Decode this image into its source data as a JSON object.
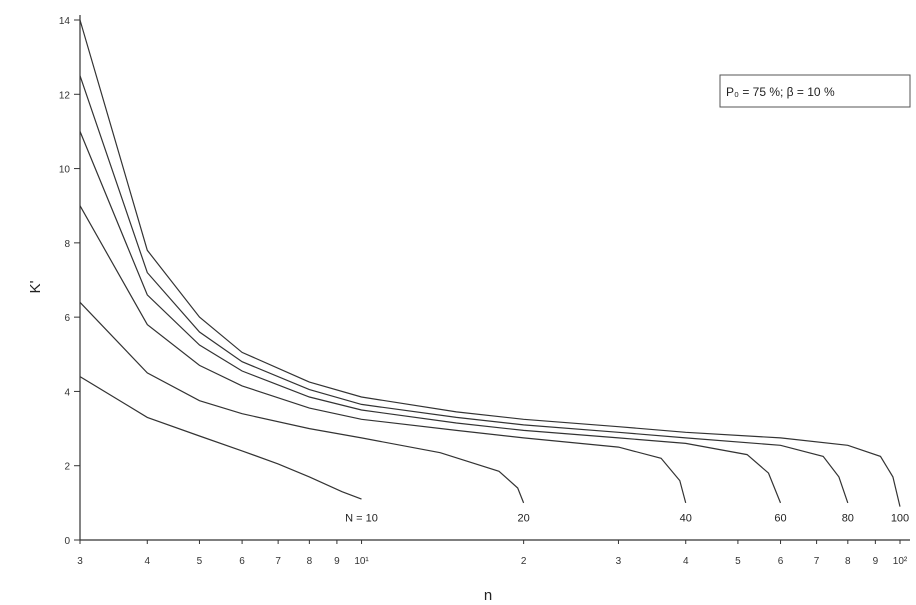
{
  "chart_data": {
    "type": "line",
    "xlabel": "n",
    "ylabel": "K'",
    "xscale": "log",
    "xlim": [
      3,
      100
    ],
    "ylim": [
      0,
      14
    ],
    "yticks": [
      0,
      2,
      4,
      6,
      8,
      10,
      12,
      14
    ],
    "xticks": [
      {
        "value": 3,
        "label": "3"
      },
      {
        "value": 4,
        "label": "4"
      },
      {
        "value": 5,
        "label": "5"
      },
      {
        "value": 6,
        "label": "6"
      },
      {
        "value": 7,
        "label": "7"
      },
      {
        "value": 8,
        "label": "8"
      },
      {
        "value": 9,
        "label": "9"
      },
      {
        "value": 10,
        "label": "10¹"
      },
      {
        "value": 20,
        "label": "2"
      },
      {
        "value": 30,
        "label": "3"
      },
      {
        "value": 40,
        "label": "4"
      },
      {
        "value": 50,
        "label": "5"
      },
      {
        "value": 60,
        "label": "6"
      },
      {
        "value": 70,
        "label": "7"
      },
      {
        "value": 80,
        "label": "8"
      },
      {
        "value": 90,
        "label": "9"
      },
      {
        "value": 100,
        "label": "10²"
      }
    ],
    "legend_text": "P₀ = 75 %; β = 10 %",
    "legend_position": "top-right",
    "grid": false,
    "series": [
      {
        "name": "N = 10",
        "x": [
          3,
          4,
          5,
          6,
          7,
          8,
          9.2,
          10
        ],
        "y": [
          4.4,
          3.3,
          2.8,
          2.4,
          2.05,
          1.7,
          1.3,
          1.1
        ]
      },
      {
        "name": "20",
        "x": [
          3,
          4,
          5,
          6,
          8,
          10,
          14,
          18,
          19.5,
          20
        ],
        "y": [
          6.4,
          4.5,
          3.75,
          3.4,
          3.0,
          2.75,
          2.35,
          1.85,
          1.4,
          1.0
        ]
      },
      {
        "name": "40",
        "x": [
          3,
          4,
          5,
          6,
          8,
          10,
          15,
          20,
          30,
          36,
          39,
          40
        ],
        "y": [
          9.0,
          5.8,
          4.7,
          4.15,
          3.55,
          3.25,
          2.95,
          2.75,
          2.5,
          2.2,
          1.6,
          1.0
        ]
      },
      {
        "name": "60",
        "x": [
          3,
          4,
          5,
          6,
          8,
          10,
          15,
          20,
          30,
          40,
          52,
          57,
          60
        ],
        "y": [
          11.0,
          6.6,
          5.25,
          4.55,
          3.85,
          3.5,
          3.15,
          2.95,
          2.75,
          2.6,
          2.3,
          1.8,
          1.0
        ]
      },
      {
        "name": "80",
        "x": [
          3,
          4,
          5,
          6,
          8,
          10,
          15,
          20,
          30,
          40,
          60,
          72,
          77,
          80
        ],
        "y": [
          12.5,
          7.2,
          5.6,
          4.8,
          4.05,
          3.65,
          3.3,
          3.1,
          2.9,
          2.75,
          2.55,
          2.25,
          1.7,
          1.0
        ]
      },
      {
        "name": "100",
        "x": [
          3,
          4,
          5,
          6,
          8,
          10,
          15,
          20,
          30,
          40,
          60,
          80,
          92,
          97,
          100
        ],
        "y": [
          14.0,
          7.8,
          6.0,
          5.05,
          4.25,
          3.85,
          3.45,
          3.25,
          3.05,
          2.9,
          2.75,
          2.55,
          2.25,
          1.7,
          0.9
        ]
      }
    ],
    "series_labels": [
      {
        "text": "N = 10",
        "x": 10.0,
        "y": 0.6
      },
      {
        "text": "20",
        "x": 20.0,
        "y": 0.6
      },
      {
        "text": "40",
        "x": 40.0,
        "y": 0.6
      },
      {
        "text": "60",
        "x": 60.0,
        "y": 0.6
      },
      {
        "text": "80",
        "x": 80.0,
        "y": 0.6
      },
      {
        "text": "100",
        "x": 100.0,
        "y": 0.6
      }
    ]
  }
}
